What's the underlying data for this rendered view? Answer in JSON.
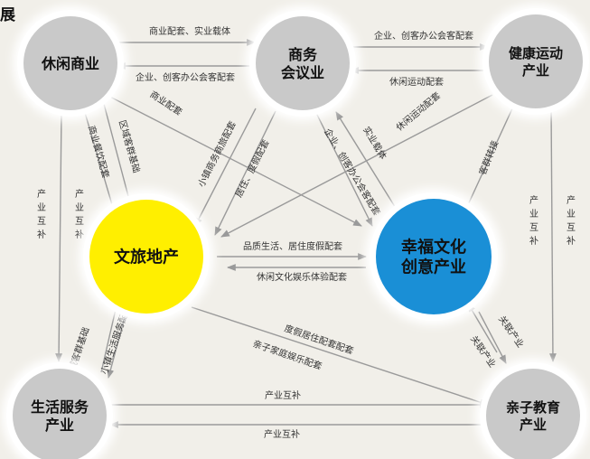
{
  "heading": "展",
  "nodes": [
    {
      "id": "leisure",
      "lines": [
        "休闲商业"
      ],
      "fill": "#c9c9c9",
      "text_color": "#111111"
    },
    {
      "id": "business",
      "lines": [
        "商务",
        "会议业"
      ],
      "fill": "#c9c9c9",
      "text_color": "#111111"
    },
    {
      "id": "health",
      "lines": [
        "健康运动",
        "产业"
      ],
      "fill": "#c9c9c9",
      "text_color": "#111111"
    },
    {
      "id": "tourism",
      "lines": [
        "文旅地产"
      ],
      "fill": "#ffef00",
      "text_color": "#111111"
    },
    {
      "id": "culture",
      "lines": [
        "幸福文化",
        "创意产业"
      ],
      "fill": "#1a8fd6",
      "text_color": "#111111"
    },
    {
      "id": "life",
      "lines": [
        "生活服务",
        "产业"
      ],
      "fill": "#c9c9c9",
      "text_color": "#111111"
    },
    {
      "id": "child",
      "lines": [
        "亲子教育",
        "产业"
      ],
      "fill": "#c9c9c9",
      "text_color": "#111111"
    }
  ],
  "edge_labels": {
    "leisure_to_business": "商业配套、实业载体",
    "business_to_leisure": "企业、创客办公会客配套",
    "business_to_health": "企业、创客办公会客配套",
    "health_to_business": "休闲运动配套",
    "leisure_diag_commerce": "商业配套",
    "leisure_to_tourism_a": "区域客群基础",
    "leisure_to_tourism_b": "商业餐饮配套",
    "business_to_tourism_a": "小镇商务商旅配套",
    "business_to_tourism_b": "居住、度假配套",
    "business_to_culture_a": "企业、创客办公会客配套",
    "business_to_culture_b": "实业载体",
    "health_to_tourism": "休闲运动配套",
    "health_to_culture": "客群转接",
    "leisure_to_life": "产业互补",
    "tourism_to_life_a": "区域客群基础",
    "tourism_to_life_b": "小镇生活服务配套",
    "tourism_to_culture": "品质生活、居住度假配套",
    "culture_to_tourism": "休闲文化娱乐体验配套",
    "tourism_to_child_a": "度假居住配套配套",
    "tourism_to_child_b": "亲子家庭娱乐配套",
    "health_to_child": "产业互补",
    "culture_to_child_a": "关联产业",
    "culture_to_child_b": "关联产业",
    "life_to_child": "产业互补",
    "child_to_life": "产业互补"
  },
  "colors": {
    "arrow": "#9a9a9a",
    "label": "#333333",
    "halo": "#ffffff"
  }
}
